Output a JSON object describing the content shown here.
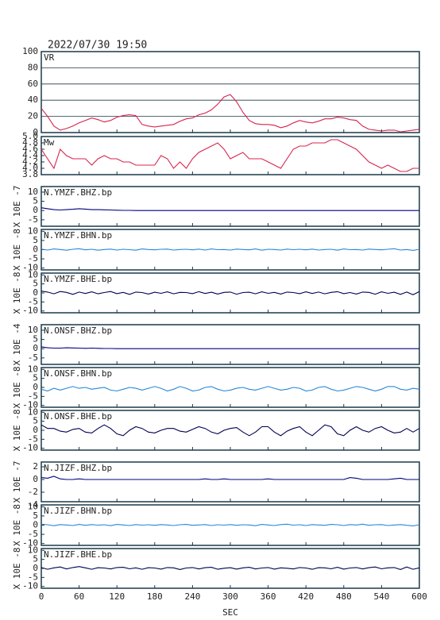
{
  "chart_data": {
    "type": "line",
    "title": "2022/07/30 19:50",
    "xlabel": "SEC",
    "xlim": [
      0,
      600
    ],
    "xticks": [
      0,
      60,
      120,
      180,
      240,
      300,
      360,
      420,
      480,
      540,
      600
    ],
    "x": [
      0,
      10,
      20,
      30,
      40,
      50,
      60,
      70,
      80,
      90,
      100,
      110,
      120,
      130,
      140,
      150,
      160,
      170,
      180,
      190,
      200,
      210,
      220,
      230,
      240,
      250,
      260,
      270,
      280,
      290,
      300,
      310,
      320,
      330,
      340,
      350,
      360,
      370,
      380,
      390,
      400,
      410,
      420,
      430,
      440,
      450,
      460,
      470,
      480,
      490,
      500,
      510,
      520,
      530,
      540,
      550,
      560,
      570,
      580,
      590,
      600
    ],
    "panels": [
      {
        "label": "VR",
        "ylim": [
          0,
          100
        ],
        "yticks": [
          0,
          20,
          40,
          60,
          80,
          100
        ],
        "grid": true,
        "color": "#d8244c",
        "values": [
          30,
          20,
          8,
          3,
          5,
          8,
          12,
          15,
          18,
          16,
          13,
          15,
          19,
          21,
          22,
          21,
          10,
          8,
          7,
          8,
          9,
          10,
          14,
          17,
          18,
          22,
          24,
          28,
          35,
          44,
          47,
          38,
          25,
          15,
          11,
          10,
          10,
          9,
          6,
          8,
          12,
          15,
          13,
          12,
          14,
          17,
          17,
          19,
          18,
          16,
          15,
          8,
          4,
          3,
          2,
          3,
          3,
          1,
          2,
          3,
          4
        ]
      },
      {
        "label": "Mw",
        "ylim": [
          3.8,
          5.0
        ],
        "yticks": [
          3.8,
          {
            "value": 4,
            "label": "4.0"
          },
          4.2,
          4.4,
          4.6,
          4.8,
          {
            "value": 5,
            "label": "5.0"
          }
        ],
        "grid": false,
        "color": "#d8244c",
        "values": [
          4.6,
          4.3,
          4.0,
          4.6,
          4.4,
          4.3,
          4.3,
          4.3,
          4.1,
          4.3,
          4.4,
          4.3,
          4.3,
          4.2,
          4.2,
          4.1,
          4.1,
          4.1,
          4.1,
          4.4,
          4.3,
          4.0,
          4.2,
          4.0,
          4.3,
          4.5,
          4.6,
          4.7,
          4.8,
          4.6,
          4.3,
          4.4,
          4.5,
          4.3,
          4.3,
          4.3,
          4.2,
          4.1,
          4.0,
          4.3,
          4.6,
          4.7,
          4.7,
          4.8,
          4.8,
          4.8,
          4.9,
          4.9,
          4.8,
          4.7,
          4.6,
          4.4,
          4.2,
          4.1,
          4.0,
          4.1,
          4.0,
          3.9,
          3.9,
          4.0,
          4.0
        ]
      },
      {
        "label": "N.YMZF.BHZ.bp",
        "ylabel": "X 10E -7",
        "ylim": [
          -8.5,
          13
        ],
        "yticks": [
          -5,
          0,
          5,
          10
        ],
        "grid": false,
        "color": "#00007f",
        "values": [
          1.5,
          1,
          0.5,
          0.3,
          0.5,
          0.7,
          1,
          0.8,
          0.5,
          0.5,
          0.4,
          0.3,
          0.2,
          0.1,
          0.1,
          0,
          0,
          0,
          0,
          0,
          0,
          0,
          0,
          0,
          0,
          0,
          0,
          0,
          0,
          0,
          0,
          0,
          0,
          0,
          0,
          0,
          0,
          0,
          0,
          0,
          0,
          0,
          0,
          0,
          0,
          0,
          0,
          0,
          0,
          0,
          0,
          0,
          0,
          0,
          0,
          0,
          0,
          0,
          0,
          0,
          0
        ]
      },
      {
        "label": "N.YMZF.BHN.bp",
        "ylabel": "X 10E -8",
        "ylim": [
          -11,
          11
        ],
        "yticks": [
          -10,
          -5,
          0,
          5,
          10
        ],
        "grid": false,
        "color": "#2a86d8",
        "values": [
          0.3,
          -0.2,
          0.4,
          0.1,
          -0.3,
          0.2,
          0.5,
          -0.1,
          0.2,
          -0.3,
          0.1,
          0.3,
          -0.2,
          0.2,
          0,
          -0.3,
          0.4,
          0.1,
          -0.1,
          0.2,
          0.3,
          -0.2,
          0.1,
          0.2,
          -0.1,
          0.3,
          -0.2,
          0.4,
          0,
          0.1,
          -0.2,
          0.3,
          0.1,
          -0.1,
          0.4,
          -0.3,
          0.2,
          0.1,
          -0.2,
          0.3,
          0,
          0.2,
          -0.1,
          0.3,
          -0.2,
          0.1,
          0.2,
          -0.3,
          0.4,
          0,
          0.1,
          -0.2,
          0.3,
          0.1,
          -0.1,
          0.2,
          0.5,
          -0.2,
          0.1,
          -0.4,
          0.2
        ]
      },
      {
        "label": "N.YMZF.BHE.bp",
        "ylabel": "X 10E -8",
        "ylim": [
          -11,
          11
        ],
        "yticks": [
          -10,
          -5,
          0,
          5,
          10
        ],
        "grid": false,
        "color": "#000050",
        "values": [
          1,
          0.5,
          -0.5,
          0.8,
          0.3,
          -0.8,
          0.5,
          -0.3,
          0.6,
          -0.5,
          0.2,
          0.8,
          -0.4,
          0.3,
          -0.8,
          0.5,
          0.2,
          -0.6,
          0.4,
          -0.2,
          0.6,
          -0.5,
          0.3,
          0.2,
          -0.4,
          0.7,
          -0.3,
          0.4,
          -0.6,
          0.3,
          0.5,
          -0.7,
          0.2,
          0.4,
          -0.5,
          0.6,
          -0.2,
          0.3,
          -0.6,
          0.5,
          0.2,
          -0.4,
          0.6,
          -0.3,
          0.5,
          -0.5,
          0.3,
          0.7,
          -0.4,
          0.2,
          -0.6,
          0.5,
          0.3,
          -0.7,
          0.6,
          -0.2,
          0.4,
          -0.8,
          0.5,
          -1,
          0.8
        ]
      },
      {
        "label": "N.ONSF.BHZ.bp",
        "ylabel": "X 10E -4",
        "ylim": [
          -8.5,
          13
        ],
        "yticks": [
          -5,
          0,
          5,
          10
        ],
        "grid": false,
        "color": "#00007f",
        "values": [
          1,
          0.5,
          0.3,
          0.3,
          0.5,
          0.4,
          0.3,
          0.2,
          0.3,
          0.2,
          0.1,
          0.1,
          0,
          0,
          0,
          0,
          0,
          0,
          0,
          0,
          0,
          0,
          0,
          0,
          0,
          0,
          0,
          0,
          0,
          0,
          0,
          0,
          0,
          0,
          0,
          0,
          0,
          0,
          0,
          0,
          0,
          0,
          0,
          0,
          0,
          0,
          0,
          0,
          0,
          0,
          0,
          0,
          0,
          0,
          0,
          0,
          0,
          0,
          0,
          0,
          0
        ]
      },
      {
        "label": "N.ONSF.BHN.bp",
        "ylabel": "X 10E -8",
        "ylim": [
          -11,
          11
        ],
        "yticks": [
          -10,
          -5,
          0,
          5,
          10
        ],
        "grid": false,
        "color": "#2a86d8",
        "values": [
          -1,
          -2,
          -0.5,
          -1.5,
          -0.5,
          0.5,
          -0.5,
          0,
          -1,
          -0.5,
          0,
          -1.5,
          -2,
          -1,
          0,
          -0.5,
          -1.5,
          -0.5,
          0.5,
          -0.5,
          -2,
          -1,
          0.5,
          -0.5,
          -2,
          -1.5,
          0,
          0.5,
          -1,
          -2,
          -1.5,
          -0.5,
          0,
          -1,
          -1.5,
          -0.5,
          0.5,
          -0.5,
          -1.5,
          -1,
          0,
          -0.5,
          -2,
          -1.5,
          0,
          0.5,
          -1,
          -2,
          -1.5,
          -0.5,
          0.5,
          0,
          -1,
          -2,
          -1,
          0.5,
          0.5,
          -1,
          -1.5,
          -0.5,
          -1
        ]
      },
      {
        "label": "N.ONSF.BHE.bp",
        "ylabel": "X 10E -8",
        "ylim": [
          -11,
          11
        ],
        "yticks": [
          -10,
          -5,
          0,
          5,
          10
        ],
        "grid": false,
        "color": "#000050",
        "values": [
          3,
          1,
          1,
          -0.5,
          -1,
          0.5,
          1,
          -1,
          -1.5,
          1,
          3,
          1,
          -2,
          -3,
          0,
          2,
          1,
          -1,
          -1.5,
          0,
          1,
          1,
          -0.5,
          -1,
          0.5,
          2,
          1,
          -1,
          -2,
          0,
          1,
          1.5,
          -1,
          -3,
          -1,
          2,
          2,
          -1,
          -3,
          -0.5,
          1,
          2,
          -1,
          -3,
          0,
          3,
          2,
          -2,
          -3,
          0,
          2,
          0,
          -1,
          1,
          2,
          0,
          -1.5,
          -1,
          1,
          -1,
          1
        ]
      },
      {
        "label": "N.JIZF.BHZ.bp",
        "ylabel": "X 10E -7",
        "ylim": [
          -3.5,
          2.75
        ],
        "yticks": [
          -4,
          -2,
          0,
          2
        ],
        "grid": false,
        "color": "#00007f",
        "values": [
          0.3,
          0.2,
          0.5,
          0.1,
          0,
          0,
          0.1,
          0,
          0,
          0,
          0,
          0,
          0,
          0,
          0,
          0,
          0,
          0,
          0,
          0,
          0,
          0,
          0,
          0,
          0,
          0,
          0.1,
          0,
          0,
          0.1,
          0,
          0,
          0,
          0,
          0,
          0,
          0.1,
          0,
          0,
          0,
          0,
          0,
          0,
          0,
          0,
          0,
          0,
          0,
          0,
          0.3,
          0.2,
          0,
          0,
          0,
          0,
          0,
          0.1,
          0.2,
          0,
          0,
          0
        ]
      },
      {
        "label": "N.JIZF.BHN.bp",
        "ylabel": "X 10E -8",
        "ylim": [
          -11,
          11
        ],
        "yticks": [
          -10,
          -5,
          0,
          5,
          10
        ],
        "grid": false,
        "color": "#2a86d8",
        "values": [
          0.5,
          0.2,
          -0.3,
          0.3,
          0.1,
          -0.2,
          0.4,
          -0.1,
          0.3,
          0,
          0.2,
          -0.3,
          0.4,
          0.1,
          -0.2,
          0.3,
          0,
          0.2,
          -0.1,
          0.3,
          0.1,
          -0.2,
          0.2,
          0.4,
          -0.1,
          0.1,
          0.3,
          -0.2,
          0.2,
          0,
          0.3,
          -0.1,
          0.2,
          0.1,
          -0.3,
          0.4,
          0.1,
          -0.2,
          0.3,
          0.5,
          0,
          0.2,
          -0.2,
          0.3,
          0.1,
          -0.1,
          0.4,
          0.2,
          -0.2,
          0.3,
          0.1,
          0.5,
          -0.1,
          0.2,
          0.3,
          -0.2,
          0.1,
          0.3,
          -0.1,
          -0.4,
          0.2
        ]
      },
      {
        "label": "N.JIZF.BHE.bp",
        "ylabel": "X 10E -8",
        "ylim": [
          -11,
          11
        ],
        "yticks": [
          -10,
          -5,
          0,
          5,
          10
        ],
        "grid": false,
        "color": "#000050",
        "values": [
          0.5,
          -0.5,
          0.3,
          0.8,
          -0.3,
          0.5,
          1,
          0.3,
          -0.5,
          0.4,
          0.2,
          -0.3,
          0.5,
          0.6,
          -0.2,
          0.3,
          -0.5,
          0.4,
          0.2,
          -0.4,
          0.5,
          0.3,
          -0.6,
          0.2,
          0.5,
          -0.3,
          0.4,
          0.6,
          -0.5,
          0.1,
          0.4,
          -0.4,
          0.3,
          0.6,
          -0.3,
          0.2,
          0.5,
          -0.4,
          0.3,
          0.1,
          -0.3,
          0.5,
          0.2,
          -0.5,
          0.4,
          0.3,
          -0.2,
          0.6,
          -0.4,
          0.2,
          0.5,
          -0.3,
          0.4,
          0.8,
          -0.2,
          0.3,
          0.5,
          -0.6,
          0.8,
          -0.5,
          0.3
        ]
      }
    ]
  }
}
